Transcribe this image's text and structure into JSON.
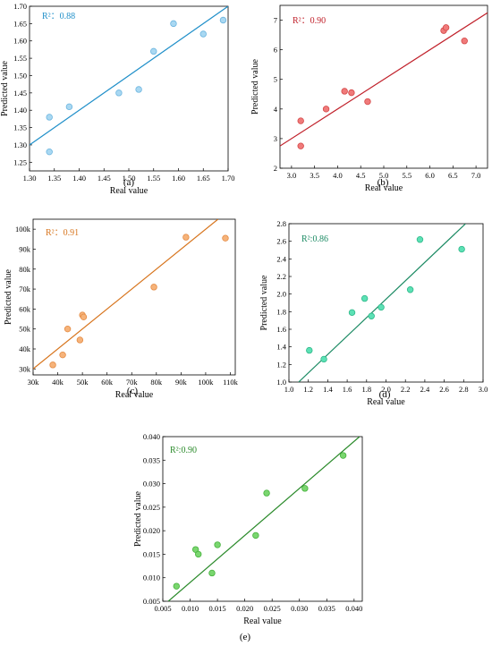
{
  "chart_data": [
    {
      "type": "scatter",
      "panel_label": "(a)",
      "xlabel": "Real value",
      "ylabel": "Predicted value",
      "annotation": "R²：0.88",
      "color": "#1f8fc9",
      "point_fill": "#a9d8f2",
      "point_stroke": "#6cb5df",
      "xlim": [
        1.3,
        1.7
      ],
      "ylim": [
        1.225,
        1.7
      ],
      "xticks": [
        1.3,
        1.35,
        1.4,
        1.45,
        1.5,
        1.55,
        1.6,
        1.65,
        1.7
      ],
      "yticks": [
        1.25,
        1.3,
        1.35,
        1.4,
        1.45,
        1.5,
        1.55,
        1.6,
        1.65,
        1.7
      ],
      "xtick_labels": [
        "1.30",
        "1.35",
        "1.40",
        "1.45",
        "1.50",
        "1.55",
        "1.60",
        "1.65",
        "1.70"
      ],
      "ytick_labels": [
        "1.25",
        "1.30",
        "1.35",
        "1.40",
        "1.45",
        "1.50",
        "1.55",
        "1.60",
        "1.65",
        "1.70"
      ],
      "points": [
        [
          1.34,
          1.38
        ],
        [
          1.34,
          1.28
        ],
        [
          1.38,
          1.41
        ],
        [
          1.48,
          1.45
        ],
        [
          1.52,
          1.46
        ],
        [
          1.55,
          1.57
        ],
        [
          1.59,
          1.65
        ],
        [
          1.65,
          1.62
        ],
        [
          1.69,
          1.66
        ]
      ],
      "fit_line": [
        [
          1.3,
          1.3
        ],
        [
          1.7,
          1.7
        ]
      ]
    },
    {
      "type": "scatter",
      "panel_label": "(b)",
      "xlabel": "Real value",
      "ylabel": "Predicted value",
      "annotation": "R²：0.90",
      "color": "#c0202a",
      "point_fill": "#f07a7a",
      "point_stroke": "#d44848",
      "xlim": [
        2.75,
        7.25
      ],
      "ylim": [
        2.0,
        7.5
      ],
      "xticks": [
        3.0,
        3.5,
        4.0,
        4.5,
        5.0,
        5.5,
        6.0,
        6.5,
        7.0
      ],
      "yticks": [
        2,
        3,
        4,
        5,
        6,
        7
      ],
      "xtick_labels": [
        "3.0",
        "3.5",
        "4.0",
        "4.5",
        "5.0",
        "5.5",
        "6.0",
        "6.5",
        "7.0"
      ],
      "ytick_labels": [
        "2",
        "3",
        "4",
        "5",
        "6",
        "7"
      ],
      "points": [
        [
          3.2,
          3.6
        ],
        [
          3.2,
          2.75
        ],
        [
          3.75,
          4.0
        ],
        [
          4.15,
          4.6
        ],
        [
          4.3,
          4.55
        ],
        [
          4.65,
          4.25
        ],
        [
          6.3,
          6.65
        ],
        [
          6.35,
          6.75
        ],
        [
          6.75,
          6.3
        ]
      ],
      "fit_line": [
        [
          2.75,
          2.75
        ],
        [
          7.25,
          7.25
        ]
      ]
    },
    {
      "type": "scatter",
      "panel_label": "(c)",
      "xlabel": "Real value",
      "ylabel": "Predicted value",
      "annotation": "R²：0.91",
      "color": "#d7741c",
      "point_fill": "#f6b37a",
      "point_stroke": "#e48a42",
      "xlim": [
        30000,
        112000
      ],
      "ylim": [
        27000,
        105000
      ],
      "xticks": [
        30000,
        40000,
        50000,
        60000,
        70000,
        80000,
        90000,
        100000,
        110000
      ],
      "yticks": [
        30000,
        40000,
        50000,
        60000,
        70000,
        80000,
        90000,
        100000
      ],
      "xtick_labels": [
        "30k",
        "40k",
        "50k",
        "60k",
        "70k",
        "80k",
        "90k",
        "100k",
        "110k"
      ],
      "ytick_labels": [
        "30k",
        "40k",
        "50k",
        "60k",
        "70k",
        "80k",
        "90k",
        "100k"
      ],
      "points": [
        [
          38000,
          32000
        ],
        [
          42000,
          37000
        ],
        [
          44000,
          50000
        ],
        [
          49000,
          44500
        ],
        [
          50000,
          57000
        ],
        [
          50500,
          56000
        ],
        [
          79000,
          71000
        ],
        [
          92000,
          96000
        ],
        [
          108000,
          95500
        ]
      ],
      "fit_line": [
        [
          30000,
          30000
        ],
        [
          105000,
          105000
        ]
      ]
    },
    {
      "type": "scatter",
      "panel_label": "(d)",
      "xlabel": "Real value",
      "ylabel": "Predicted value",
      "annotation": "R²:0.86",
      "color": "#1b8a63",
      "point_fill": "#5ce1b5",
      "point_stroke": "#2fb88a",
      "xlim": [
        1.0,
        3.0
      ],
      "ylim": [
        1.0,
        2.8
      ],
      "xticks": [
        1.0,
        1.2,
        1.4,
        1.6,
        1.8,
        2.0,
        2.2,
        2.4,
        2.6,
        2.8,
        3.0
      ],
      "yticks": [
        1.0,
        1.2,
        1.4,
        1.6,
        1.8,
        2.0,
        2.2,
        2.4,
        2.6,
        2.8
      ],
      "xtick_labels": [
        "1.0",
        "1.2",
        "1.4",
        "1.6",
        "1.8",
        "2.0",
        "2.2",
        "2.4",
        "2.6",
        "2.8",
        "3.0"
      ],
      "ytick_labels": [
        "1.0",
        "1.2",
        "1.4",
        "1.6",
        "1.8",
        "2.0",
        "2.2",
        "2.4",
        "2.6",
        "2.8"
      ],
      "points": [
        [
          1.21,
          1.36
        ],
        [
          1.36,
          1.26
        ],
        [
          1.65,
          1.79
        ],
        [
          1.78,
          1.95
        ],
        [
          1.85,
          1.75
        ],
        [
          1.95,
          1.85
        ],
        [
          2.25,
          2.05
        ],
        [
          2.35,
          2.62
        ],
        [
          2.78,
          2.51
        ]
      ],
      "fit_line": [
        [
          1.1,
          1.0
        ],
        [
          2.82,
          2.8
        ]
      ]
    },
    {
      "type": "scatter",
      "panel_label": "(e)",
      "xlabel": "Real value",
      "ylabel": "Predicted value",
      "annotation": "R²:0.90",
      "color": "#2a8a2a",
      "point_fill": "#7ad66f",
      "point_stroke": "#45b23c",
      "xlim": [
        0.005,
        0.0415
      ],
      "ylim": [
        0.005,
        0.04
      ],
      "xticks": [
        0.005,
        0.01,
        0.015,
        0.02,
        0.025,
        0.03,
        0.035,
        0.04
      ],
      "yticks": [
        0.005,
        0.01,
        0.015,
        0.02,
        0.025,
        0.03,
        0.035,
        0.04
      ],
      "xtick_labels": [
        "0.005",
        "0.010",
        "0.015",
        "0.020",
        "0.025",
        "0.030",
        "0.035",
        "0.040"
      ],
      "ytick_labels": [
        "0.005",
        "0.010",
        "0.015",
        "0.020",
        "0.025",
        "0.030",
        "0.035",
        "0.040"
      ],
      "points": [
        [
          0.0075,
          0.0082
        ],
        [
          0.011,
          0.016
        ],
        [
          0.0115,
          0.015
        ],
        [
          0.014,
          0.011
        ],
        [
          0.015,
          0.017
        ],
        [
          0.022,
          0.019
        ],
        [
          0.024,
          0.028
        ],
        [
          0.031,
          0.029
        ],
        [
          0.038,
          0.036
        ]
      ],
      "fit_line": [
        [
          0.006,
          0.005
        ],
        [
          0.041,
          0.04
        ]
      ]
    }
  ]
}
